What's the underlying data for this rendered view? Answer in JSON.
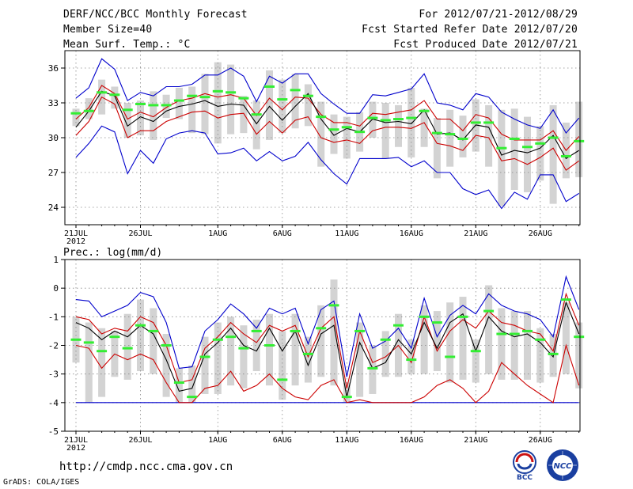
{
  "header": {
    "title": "DERF/NCC/BCC Monthly Forecast",
    "member_size": "Member Size=40",
    "variable": "Mean Surf. Temp.: °C",
    "period": "For 2012/07/21-2012/08/29",
    "started": "Fcst Started Refer Date 2012/07/20",
    "produced": "Fcst Produced Date 2012/07/21"
  },
  "footer": {
    "url": "http://cmdp.ncc.cma.gov.cn",
    "grads": "GrADS: COLA/IGES",
    "logo_bcc": "BCC",
    "logo_ncc": "NCC"
  },
  "colors": {
    "max_min": "#0000cc",
    "spread": "#cc0000",
    "mean": "#000000",
    "median": "#33ee33",
    "box": "#d3d3d3",
    "grid": "#888888"
  },
  "chart_data": [
    {
      "type": "box-line",
      "title": "Mean Surf. Temp.: °C",
      "ylabel": "°C",
      "ylim": [
        22.5,
        37.5
      ],
      "yticks": [
        24,
        27,
        30,
        33,
        36
      ],
      "xticks": [
        {
          "day": 1,
          "label": "21JUL",
          "sub": "2012"
        },
        {
          "day": 6,
          "label": "26JUL"
        },
        {
          "day": 12,
          "label": "1AUG"
        },
        {
          "day": 17,
          "label": "6AUG"
        },
        {
          "day": 22,
          "label": "11AUG"
        },
        {
          "day": 27,
          "label": "16AUG"
        },
        {
          "day": 32,
          "label": "21AUG"
        },
        {
          "day": 37,
          "label": "26AUG"
        }
      ],
      "days": [
        1,
        2,
        3,
        4,
        5,
        6,
        7,
        8,
        9,
        10,
        11,
        12,
        13,
        14,
        15,
        16,
        17,
        18,
        19,
        20,
        21,
        22,
        23,
        24,
        25,
        26,
        27,
        28,
        29,
        30,
        31,
        32,
        33,
        34,
        35,
        36,
        37,
        38,
        39,
        40
      ],
      "series": [
        {
          "name": "max",
          "values": [
            33.4,
            34.3,
            36.8,
            35.9,
            33.2,
            33.9,
            33.6,
            34.4,
            34.4,
            34.6,
            35.4,
            35.4,
            36.0,
            35.3,
            33.1,
            35.3,
            34.7,
            35.5,
            35.5,
            33.8,
            32.9,
            32.1,
            32.1,
            33.7,
            33.6,
            33.9,
            34.2,
            35.5,
            33.0,
            32.8,
            32.4,
            33.8,
            33.5,
            32.2,
            31.6,
            31.1,
            30.8,
            32.4,
            30.4,
            31.7
          ]
        },
        {
          "name": "upper",
          "values": [
            31.6,
            32.6,
            34.5,
            33.8,
            31.6,
            32.2,
            31.8,
            32.6,
            33.2,
            33.4,
            33.8,
            33.5,
            33.7,
            33.4,
            31.9,
            33.4,
            32.4,
            33.5,
            33.4,
            32.0,
            31.3,
            31.3,
            31.0,
            32.1,
            32.0,
            32.2,
            32.4,
            33.2,
            31.6,
            31.6,
            30.6,
            32.0,
            31.7,
            30.3,
            29.8,
            29.8,
            29.8,
            30.6,
            28.9,
            30.1
          ]
        },
        {
          "name": "mean",
          "values": [
            30.9,
            32.3,
            34.0,
            33.6,
            31.0,
            31.8,
            31.4,
            32.3,
            32.7,
            32.9,
            33.2,
            32.7,
            32.9,
            32.8,
            31.2,
            32.7,
            31.5,
            32.7,
            33.8,
            31.6,
            30.2,
            30.8,
            30.5,
            31.6,
            31.3,
            31.4,
            31.2,
            32.4,
            30.3,
            30.4,
            29.8,
            31.1,
            30.9,
            28.5,
            28.9,
            28.7,
            29.1,
            30.2,
            28.2,
            28.9
          ]
        },
        {
          "name": "lower",
          "values": [
            30.2,
            31.4,
            33.5,
            32.9,
            30.0,
            30.6,
            30.6,
            31.4,
            31.8,
            32.2,
            32.3,
            31.7,
            32.0,
            32.1,
            30.3,
            31.4,
            30.4,
            31.5,
            31.8,
            30.0,
            29.6,
            29.8,
            29.5,
            30.6,
            30.9,
            30.9,
            30.8,
            31.3,
            29.5,
            29.3,
            28.9,
            30.2,
            30.0,
            28.0,
            28.2,
            27.7,
            28.3,
            29.1,
            27.2,
            28.0
          ]
        },
        {
          "name": "min",
          "values": [
            28.3,
            29.5,
            31.0,
            30.5,
            26.9,
            28.9,
            27.8,
            29.9,
            30.4,
            30.6,
            30.4,
            28.6,
            28.7,
            29.1,
            28.0,
            28.8,
            28.0,
            28.4,
            29.6,
            28.1,
            26.9,
            26.0,
            28.2,
            28.2,
            28.2,
            28.3,
            27.5,
            28.0,
            27.0,
            27.0,
            25.6,
            25.1,
            25.5,
            23.9,
            25.3,
            24.7,
            26.8,
            26.8,
            24.5,
            25.2
          ]
        },
        {
          "name": "median",
          "values": [
            32.1,
            32.3,
            33.9,
            33.7,
            32.4,
            32.9,
            32.8,
            32.8,
            33.2,
            33.6,
            33.5,
            34.0,
            33.9,
            33.4,
            32.0,
            34.4,
            33.3,
            34.1,
            33.6,
            31.8,
            30.7,
            30.9,
            30.5,
            31.7,
            31.5,
            31.6,
            31.7,
            32.3,
            30.4,
            30.3,
            29.9,
            31.3,
            31.3,
            29.1,
            29.9,
            29.2,
            29.5,
            30.0,
            28.4,
            29.7
          ]
        },
        {
          "name": "box_high",
          "values": [
            32.5,
            33.4,
            35.0,
            34.4,
            33.0,
            33.2,
            34.0,
            33.7,
            34.3,
            34.4,
            35.5,
            36.5,
            36.3,
            33.6,
            33.2,
            35.8,
            35.0,
            35.5,
            34.6,
            33.1,
            32.0,
            31.8,
            32.2,
            33.1,
            33.0,
            32.8,
            34.3,
            32.5,
            31.7,
            32.4,
            31.9,
            33.3,
            32.8,
            32.4,
            32.5,
            31.8,
            31.0,
            32.8,
            31.3,
            33.1
          ]
        },
        {
          "name": "box_low",
          "values": [
            31.0,
            31.6,
            32.0,
            32.5,
            30.0,
            30.2,
            29.8,
            31.7,
            31.6,
            30.4,
            30.3,
            29.5,
            30.3,
            30.4,
            29.0,
            29.8,
            30.4,
            30.8,
            31.0,
            27.5,
            28.6,
            28.2,
            28.8,
            30.0,
            28.2,
            29.2,
            28.3,
            29.2,
            26.5,
            27.5,
            28.3,
            28.8,
            27.5,
            24.1,
            25.5,
            25.3,
            26.3,
            24.3,
            26.5,
            26.6
          ]
        }
      ]
    },
    {
      "type": "box-line",
      "title": "Prec.: log(mm/d)",
      "ylabel": "log(mm/d)",
      "ylim": [
        -5,
        1
      ],
      "yticks": [
        -5,
        -4,
        -3,
        -2,
        -1,
        0,
        1
      ],
      "xticks": [
        {
          "day": 1,
          "label": "21JUL",
          "sub": "2012"
        },
        {
          "day": 6,
          "label": "26JUL"
        },
        {
          "day": 12,
          "label": "1AUG"
        },
        {
          "day": 17,
          "label": "6AUG"
        },
        {
          "day": 22,
          "label": "11AUG"
        },
        {
          "day": 27,
          "label": "16AUG"
        },
        {
          "day": 32,
          "label": "21AUG"
        },
        {
          "day": 37,
          "label": "26AUG"
        }
      ],
      "days": [
        1,
        2,
        3,
        4,
        5,
        6,
        7,
        8,
        9,
        10,
        11,
        12,
        13,
        14,
        15,
        16,
        17,
        18,
        19,
        20,
        21,
        22,
        23,
        24,
        25,
        26,
        27,
        28,
        29,
        30,
        31,
        32,
        33,
        34,
        35,
        36,
        37,
        38,
        39,
        40
      ],
      "series": [
        {
          "name": "max",
          "values": [
            -0.4,
            -0.45,
            -1.0,
            -0.8,
            -0.6,
            -0.15,
            -0.3,
            -1.2,
            -2.8,
            -2.75,
            -1.5,
            -1.1,
            -0.55,
            -0.9,
            -1.4,
            -0.7,
            -0.9,
            -0.7,
            -1.95,
            -0.75,
            -0.45,
            -3.1,
            -0.9,
            -2.1,
            -1.85,
            -1.4,
            -2.1,
            -0.35,
            -1.7,
            -0.95,
            -0.6,
            -0.9,
            -0.2,
            -0.6,
            -0.8,
            -0.9,
            -1.1,
            -1.7,
            0.4,
            -0.75
          ]
        },
        {
          "name": "upper",
          "values": [
            -1.0,
            -1.1,
            -1.6,
            -1.4,
            -1.5,
            -1.0,
            -1.2,
            -2.0,
            -3.3,
            -3.2,
            -2.1,
            -1.7,
            -1.2,
            -1.6,
            -1.9,
            -1.3,
            -1.5,
            -1.3,
            -2.4,
            -1.4,
            -1.0,
            -3.5,
            -1.5,
            -2.6,
            -2.4,
            -2.0,
            -2.6,
            -1.0,
            -2.2,
            -1.5,
            -1.1,
            -1.4,
            -0.8,
            -1.2,
            -1.3,
            -1.5,
            -1.6,
            -2.2,
            -0.2,
            -1.3
          ]
        },
        {
          "name": "mean",
          "values": [
            -1.2,
            -1.4,
            -1.8,
            -1.5,
            -1.7,
            -1.3,
            -1.6,
            -2.5,
            -3.6,
            -3.5,
            -2.3,
            -1.9,
            -1.4,
            -2.0,
            -2.2,
            -1.4,
            -2.2,
            -1.5,
            -2.7,
            -1.6,
            -1.3,
            -3.8,
            -1.9,
            -2.8,
            -2.6,
            -1.8,
            -2.3,
            -1.2,
            -2.1,
            -1.2,
            -0.9,
            -2.2,
            -1.0,
            -1.5,
            -1.7,
            -1.6,
            -1.9,
            -2.4,
            -0.5,
            -1.6
          ]
        },
        {
          "name": "lower",
          "values": [
            -2.0,
            -2.1,
            -2.8,
            -2.3,
            -2.5,
            -2.3,
            -2.5,
            -3.3,
            -4.0,
            -4.0,
            -3.5,
            -3.4,
            -2.9,
            -3.6,
            -3.4,
            -3.0,
            -3.5,
            -3.8,
            -3.9,
            -3.4,
            -3.2,
            -4.0,
            -3.9,
            -4.0,
            -4.0,
            -4.0,
            -4.0,
            -3.8,
            -3.4,
            -3.2,
            -3.5,
            -4.0,
            -3.6,
            -2.6,
            -3.0,
            -3.4,
            -3.7,
            -4.0,
            -2.0,
            -3.4
          ]
        },
        {
          "name": "min",
          "values": [
            -4.0,
            -4.0,
            -4.0,
            -4.0,
            -4.0,
            -4.0,
            -4.0,
            -4.0,
            -4.0,
            -4.0,
            -4.0,
            -4.0,
            -4.0,
            -4.0,
            -4.0,
            -4.0,
            -4.0,
            -4.0,
            -4.0,
            -4.0,
            -4.0,
            -4.0,
            -4.0,
            -4.0,
            -4.0,
            -4.0,
            -4.0,
            -4.0,
            -4.0,
            -4.0,
            -4.0,
            -4.0,
            -4.0,
            -4.0,
            -4.0,
            -4.0,
            -4.0,
            -4.0,
            -4.0,
            -4.0
          ]
        },
        {
          "name": "median",
          "values": [
            -1.8,
            -1.9,
            -2.2,
            -1.7,
            -2.1,
            -1.3,
            -1.5,
            -2.0,
            -3.3,
            -3.8,
            -2.4,
            -1.8,
            -1.7,
            -2.1,
            -1.5,
            -2.0,
            -3.2,
            -1.5,
            -2.3,
            -1.4,
            -0.6,
            -3.8,
            -1.5,
            -2.8,
            -1.8,
            -1.3,
            -2.5,
            -1.0,
            -1.2,
            -2.4,
            -1.0,
            -2.2,
            -0.8,
            -1.6,
            -1.6,
            -1.5,
            -1.8,
            -2.3,
            -0.4,
            -1.7
          ]
        },
        {
          "name": "box_high",
          "values": [
            -1.0,
            -1.2,
            -1.4,
            -1.5,
            -0.9,
            -0.4,
            -0.7,
            -1.6,
            -2.8,
            -2.7,
            -1.7,
            -1.2,
            -1.0,
            -1.3,
            -1.1,
            -0.9,
            -1.5,
            -0.9,
            -1.7,
            -0.6,
            0.3,
            -3.3,
            -1.2,
            -2.0,
            -1.5,
            -0.9,
            -1.8,
            -0.6,
            -0.8,
            -0.5,
            -0.3,
            -1.8,
            0.1,
            -0.7,
            -0.8,
            -0.8,
            -1.4,
            -1.6,
            -0.5,
            -1.2
          ]
        },
        {
          "name": "box_low",
          "values": [
            -2.6,
            -4.0,
            -3.8,
            -3.1,
            -3.2,
            -2.9,
            -3.0,
            -3.8,
            -4.0,
            -4.0,
            -3.7,
            -3.7,
            -3.4,
            -3.5,
            -2.9,
            -3.4,
            -3.9,
            -3.4,
            -3.3,
            -3.1,
            -3.4,
            -4.0,
            -3.8,
            -3.7,
            -3.1,
            -3.1,
            -3.0,
            -3.0,
            -2.9,
            -3.3,
            -3.2,
            -3.3,
            -3.0,
            -3.2,
            -3.2,
            -3.2,
            -3.3,
            -3.1,
            -3.0,
            -3.5
          ]
        }
      ]
    }
  ]
}
